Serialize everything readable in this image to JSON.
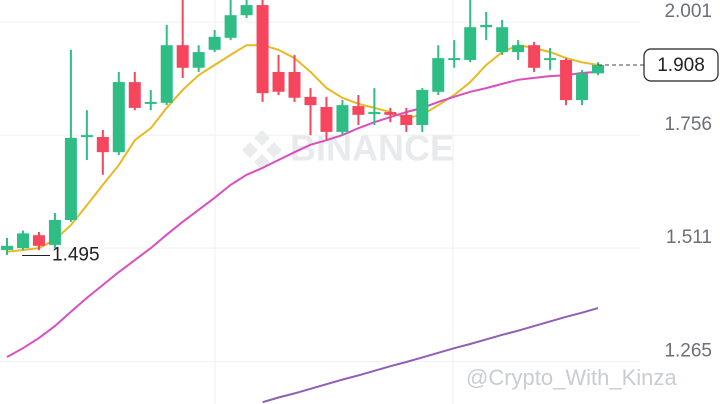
{
  "chart_data": {
    "type": "candlestick",
    "categories": [
      null,
      null,
      null,
      null,
      null,
      null,
      null,
      null,
      null,
      null,
      null,
      null,
      null,
      null,
      null,
      null,
      null,
      null,
      null,
      null,
      null,
      null,
      null,
      null,
      null,
      null,
      null,
      null,
      null,
      null,
      null,
      null,
      null,
      null,
      null,
      null,
      null,
      null
    ],
    "open": [
      1.507,
      1.511,
      1.539,
      1.518,
      1.572,
      1.752,
      1.752,
      1.719,
      1.871,
      1.824,
      1.826,
      1.951,
      1.902,
      1.941,
      1.967,
      2.016,
      2.038,
      1.893,
      1.893,
      1.839,
      1.817,
      1.763,
      1.819,
      1.802,
      1.806,
      1.8,
      1.778,
      1.85,
      1.919,
      1.919,
      1.99,
      1.936,
      1.936,
      1.951,
      1.919,
      1.919,
      1.832,
      1.89
    ],
    "high": [
      1.533,
      1.549,
      1.546,
      1.587,
      1.941,
      1.81,
      1.767,
      1.893,
      1.893,
      1.854,
      1.995,
      2.049,
      1.951,
      1.984,
      2.049,
      2.049,
      2.049,
      1.93,
      1.93,
      1.858,
      1.839,
      1.832,
      1.843,
      1.858,
      1.815,
      1.815,
      1.858,
      1.951,
      1.962,
      2.049,
      2.023,
      2.006,
      1.962,
      1.958,
      1.945,
      1.923,
      1.897,
      1.914
    ],
    "low": [
      1.496,
      1.507,
      1.507,
      1.511,
      1.568,
      1.702,
      1.67,
      1.713,
      1.81,
      1.81,
      1.821,
      1.88,
      1.893,
      1.936,
      1.962,
      2.01,
      1.828,
      1.843,
      1.828,
      1.756,
      1.745,
      1.756,
      1.778,
      1.778,
      1.784,
      1.763,
      1.763,
      1.843,
      1.902,
      1.914,
      1.962,
      1.93,
      1.919,
      1.893,
      1.897,
      1.821,
      1.821,
      1.886
    ],
    "close": [
      1.516,
      1.543,
      1.516,
      1.572,
      1.75,
      1.756,
      1.719,
      1.871,
      1.815,
      1.828,
      1.951,
      1.902,
      1.936,
      1.969,
      2.016,
      2.038,
      1.847,
      1.85,
      1.837,
      1.821,
      1.763,
      1.821,
      1.8,
      1.806,
      1.8,
      1.778,
      1.854,
      1.923,
      1.923,
      1.99,
      1.995,
      1.99,
      1.951,
      1.902,
      1.923,
      1.832,
      1.89,
      1.908
    ],
    "up_color": "#2ebd85",
    "down_color": "#f6465d",
    "series": [
      {
        "color": "#e8b923",
        "values": [
          1.503,
          1.507,
          1.511,
          1.529,
          1.561,
          1.604,
          1.648,
          1.691,
          1.745,
          1.771,
          1.815,
          1.854,
          1.886,
          1.908,
          1.93,
          1.951,
          1.951,
          1.941,
          1.923,
          1.893,
          1.858,
          1.837,
          1.824,
          1.815,
          1.806,
          1.793,
          1.8,
          1.821,
          1.843,
          1.871,
          1.908,
          1.936,
          1.951,
          1.945,
          1.936,
          1.923,
          1.914,
          1.908
        ]
      },
      {
        "color": "#d94fc0",
        "values": [
          1.275,
          1.294,
          1.316,
          1.342,
          1.373,
          1.403,
          1.431,
          1.459,
          1.485,
          1.511,
          1.54,
          1.568,
          1.594,
          1.62,
          1.648,
          1.67,
          1.685,
          1.702,
          1.719,
          1.735,
          1.745,
          1.756,
          1.771,
          1.784,
          1.795,
          1.806,
          1.815,
          1.828,
          1.839,
          1.85,
          1.858,
          1.867,
          1.876,
          1.88,
          1.884,
          1.886,
          1.891,
          1.893
        ]
      },
      {
        "color": "#8e5fb5",
        "values": [
          null,
          null,
          null,
          null,
          null,
          null,
          null,
          null,
          null,
          null,
          null,
          null,
          null,
          null,
          null,
          null,
          1.177,
          1.187,
          1.196,
          1.206,
          1.216,
          1.226,
          1.235,
          1.245,
          1.255,
          1.264,
          1.274,
          1.284,
          1.294,
          1.303,
          1.313,
          1.323,
          1.332,
          1.342,
          1.352,
          1.362,
          1.371,
          1.381
        ]
      }
    ],
    "ylim": [
      1.173,
      2.049
    ],
    "yticks": [
      2.001,
      1.756,
      1.511,
      1.265
    ],
    "grid": true,
    "low_marker": 1.495,
    "last_price": 1.908,
    "watermark": "BINANCE",
    "credit": "@Crypto_With_Kinza"
  }
}
